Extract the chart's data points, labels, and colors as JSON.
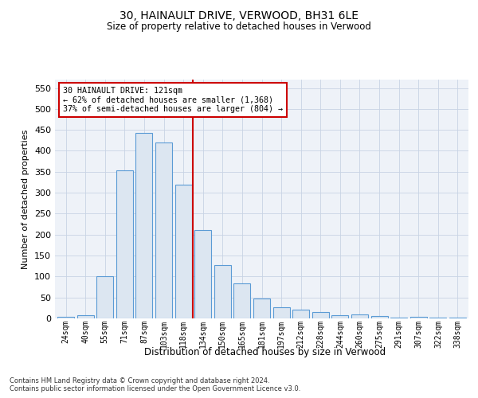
{
  "title": "30, HAINAULT DRIVE, VERWOOD, BH31 6LE",
  "subtitle": "Size of property relative to detached houses in Verwood",
  "xlabel": "Distribution of detached houses by size in Verwood",
  "ylabel": "Number of detached properties",
  "footnote1": "Contains HM Land Registry data © Crown copyright and database right 2024.",
  "footnote2": "Contains public sector information licensed under the Open Government Licence v3.0.",
  "annotation_line1": "30 HAINAULT DRIVE: 121sqm",
  "annotation_line2": "← 62% of detached houses are smaller (1,368)",
  "annotation_line3": "37% of semi-detached houses are larger (804) →",
  "bar_labels": [
    "24sqm",
    "40sqm",
    "55sqm",
    "71sqm",
    "87sqm",
    "103sqm",
    "118sqm",
    "134sqm",
    "150sqm",
    "165sqm",
    "181sqm",
    "197sqm",
    "212sqm",
    "228sqm",
    "244sqm",
    "260sqm",
    "275sqm",
    "291sqm",
    "307sqm",
    "322sqm",
    "338sqm"
  ],
  "bar_heights": [
    3,
    8,
    100,
    353,
    443,
    420,
    320,
    210,
    127,
    83,
    48,
    27,
    20,
    15,
    8,
    10,
    5,
    2,
    3,
    1,
    2
  ],
  "bar_edge_color": "#5b9bd5",
  "bar_fill_color": "#dce6f1",
  "vline_color": "#cc0000",
  "annotation_box_color": "#cc0000",
  "grid_color": "#c8d4e4",
  "background_color": "#eef2f8",
  "ylim": [
    0,
    570
  ],
  "yticks": [
    0,
    50,
    100,
    150,
    200,
    250,
    300,
    350,
    400,
    450,
    500,
    550
  ]
}
